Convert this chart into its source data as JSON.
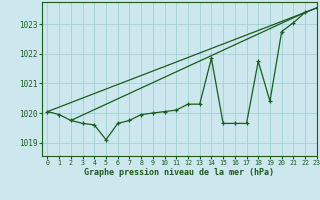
{
  "bg_color": "#cce8ee",
  "grid_color": "#99cccc",
  "line_color": "#1a5c1a",
  "xlabel": "Graphe pression niveau de la mer (hPa)",
  "xlim": [
    -0.5,
    23
  ],
  "ylim": [
    1018.55,
    1023.75
  ],
  "yticks": [
    1019,
    1020,
    1021,
    1022,
    1023
  ],
  "xticks": [
    0,
    1,
    2,
    3,
    4,
    5,
    6,
    7,
    8,
    9,
    10,
    11,
    12,
    13,
    14,
    15,
    16,
    17,
    18,
    19,
    20,
    21,
    22,
    23
  ],
  "main_data_x": [
    0,
    1,
    2,
    3,
    4,
    5,
    6,
    7,
    8,
    9,
    10,
    11,
    12,
    13,
    14,
    15,
    16,
    17,
    18,
    19,
    20,
    21,
    22,
    23
  ],
  "main_data_y": [
    1020.05,
    1019.95,
    1019.75,
    1019.65,
    1019.6,
    1019.1,
    1019.65,
    1019.75,
    1019.95,
    1020.0,
    1020.05,
    1020.1,
    1020.3,
    1020.3,
    1021.85,
    1019.65,
    1019.65,
    1019.65,
    1021.75,
    1020.4,
    1022.75,
    1023.05,
    1023.4,
    1023.55
  ],
  "line1_x": [
    0,
    23
  ],
  "line1_y": [
    1020.05,
    1023.55
  ],
  "line2_x": [
    2,
    22
  ],
  "line2_y": [
    1019.75,
    1023.4
  ]
}
